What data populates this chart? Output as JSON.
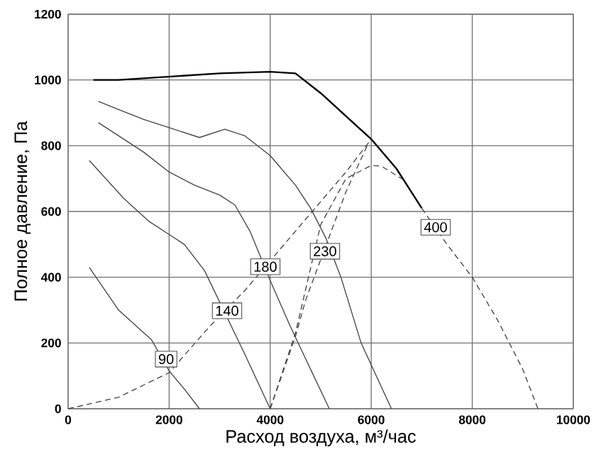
{
  "chart_data": {
    "type": "line",
    "xlabel": "Расход воздуха, м³/час",
    "ylabel": "Полное давление, Па",
    "xlim": [
      0,
      10000
    ],
    "ylim": [
      0,
      1200
    ],
    "xticks": [
      0,
      2000,
      4000,
      6000,
      8000,
      10000
    ],
    "yticks": [
      0,
      200,
      400,
      600,
      800,
      1000,
      1200
    ],
    "grid": true,
    "marker": "none",
    "series": [
      {
        "color": "#000000",
        "line_style": "solid",
        "x": [
          500,
          1000,
          2000,
          3000,
          4000,
          4500,
          5000,
          5500,
          6000,
          6500,
          7000
        ],
        "values": [
          1000,
          1000,
          1010,
          1020,
          1025,
          1020,
          960,
          890,
          820,
          730,
          610
        ]
      },
      {
        "color": "#444444",
        "line_style": "dashed",
        "x": [
          7000,
          7500,
          8000,
          8500,
          9000,
          9300
        ],
        "values": [
          610,
          500,
          400,
          270,
          120,
          0
        ]
      },
      {
        "color": "#444444",
        "line_style": "solid",
        "x": [
          600,
          1000,
          1500,
          2000,
          2600,
          3100,
          3500,
          4000,
          4500,
          4800,
          5100,
          5400,
          5800,
          6400
        ],
        "values": [
          935,
          910,
          880,
          855,
          825,
          850,
          830,
          770,
          680,
          610,
          520,
          400,
          200,
          0
        ]
      },
      {
        "color": "#444444",
        "line_style": "solid",
        "x": [
          600,
          1000,
          1500,
          2000,
          2500,
          3000,
          3300,
          3600,
          4000,
          4400,
          4800,
          5170
        ],
        "values": [
          870,
          830,
          780,
          720,
          680,
          650,
          620,
          540,
          390,
          250,
          120,
          0
        ]
      },
      {
        "color": "#444444",
        "line_style": "solid",
        "x": [
          420,
          1100,
          1600,
          2000,
          2300,
          2700,
          3500,
          4000
        ],
        "values": [
          755,
          640,
          570,
          530,
          500,
          420,
          165,
          0
        ]
      },
      {
        "color": "#444444",
        "line_style": "solid",
        "x": [
          420,
          1000,
          1650,
          2000,
          2300,
          2600
        ],
        "values": [
          430,
          300,
          210,
          115,
          60,
          0
        ]
      },
      {
        "color": "#444444",
        "line_style": "dashed",
        "x": [
          0,
          1000,
          2000,
          2800,
          3500,
          4500,
          5000,
          5500,
          5950
        ],
        "values": [
          0,
          35,
          110,
          250,
          360,
          540,
          630,
          720,
          810
        ]
      },
      {
        "color": "#444444",
        "line_style": "dashed",
        "x": [
          4000,
          4500,
          4700,
          5500,
          5950
        ],
        "values": [
          0,
          220,
          330,
          660,
          810
        ]
      },
      {
        "color": "#444444",
        "line_style": "dashed",
        "x": [
          4000,
          4500,
          5000,
          5500,
          6000,
          6200,
          6600
        ],
        "values": [
          0,
          230,
          560,
          700,
          740,
          738,
          700
        ]
      }
    ],
    "annotations": [
      {
        "text": "90",
        "x": 1940,
        "y": 151
      },
      {
        "text": "140",
        "x": 3146,
        "y": 298
      },
      {
        "text": "180",
        "x": 3904,
        "y": 432
      },
      {
        "text": "230",
        "x": 5084,
        "y": 479
      },
      {
        "text": "400",
        "x": 7275,
        "y": 552
      }
    ]
  }
}
